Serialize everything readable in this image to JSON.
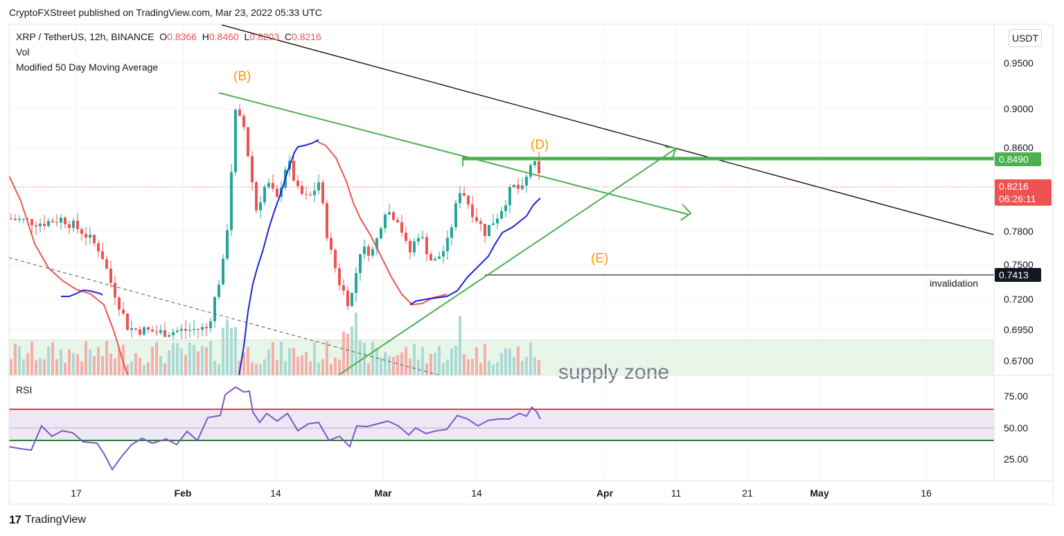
{
  "header": {
    "publisher": "CryptoFXStreet",
    "published_text": "published on TradingView.com, Mar 23, 2022 05:33 UTC",
    "symbol": "XRP / TetherUS, 12h, BINANCE",
    "open_label": "O",
    "open": "0.8366",
    "high_label": "H",
    "high": "0.8460",
    "low_label": "L",
    "low": "0.8203",
    "close_label": "C",
    "close": "0.8216",
    "vol_label": "Vol",
    "indicator_label": "Modified 50 Day Moving Average",
    "currency": "USDT",
    "rsi_label": "RSI"
  },
  "footer": {
    "logo_mark": "17",
    "logo_text": "TradingView"
  },
  "colors": {
    "up": "#26a69a",
    "down": "#ef5350",
    "ma_blue": "#1922d8",
    "ma_red": "#ef5350",
    "trend_green": "#4caf50",
    "rsi_line": "#7e57c2",
    "band_fill": "#ede7f6",
    "supply_fill": "#e8f5e9",
    "orange": "#ff9800"
  },
  "chart_data": {
    "type": "candlestick",
    "price_axis": {
      "ticks": [
        "0.9500",
        "0.9000",
        "0.8600",
        "0.7800",
        "0.7500",
        "0.7200",
        "0.6950",
        "0.6700"
      ],
      "ylim": [
        0.657,
        0.998
      ]
    },
    "time_axis": {
      "ticks": [
        "17",
        "Feb",
        "14",
        "Mar",
        "14",
        "Apr",
        "11",
        "21",
        "May",
        "16"
      ]
    },
    "rsi_axis": {
      "ticks": [
        "75.00",
        "50.00",
        "25.00"
      ],
      "upper_band": 65,
      "lower_band": 40,
      "mid": 50
    },
    "price_labels": [
      {
        "value": "0.8490",
        "kind": "resistance"
      },
      {
        "value": "0.8216",
        "kind": "last",
        "countdown": "06:26:11"
      },
      {
        "value": "0.7413",
        "kind": "invalidation"
      }
    ],
    "annotations": [
      {
        "text": "(B)"
      },
      {
        "text": "(D)"
      },
      {
        "text": "(E)"
      },
      {
        "text": "invalidation"
      },
      {
        "text": "supply zone"
      }
    ],
    "last_candle": {
      "open": 0.8366,
      "high": 0.846,
      "low": 0.8203,
      "close": 0.8216
    },
    "resistance": 0.849,
    "invalidation": 0.7413
  }
}
